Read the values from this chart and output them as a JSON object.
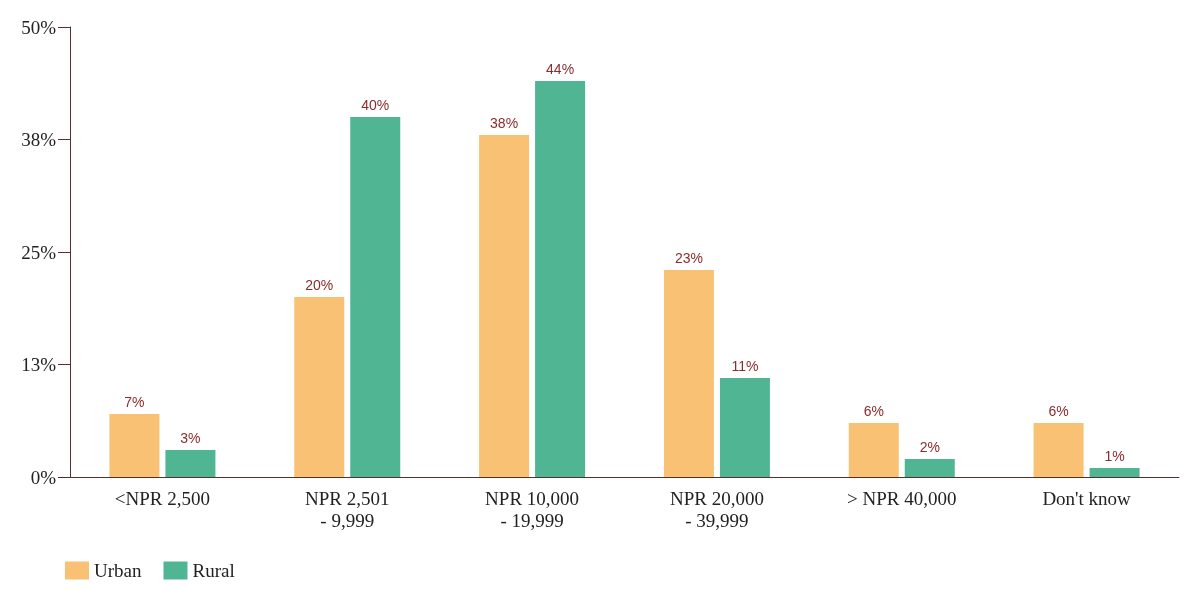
{
  "chart_data": {
    "type": "bar",
    "categories": [
      "<NPR 2,500",
      "NPR 2,501 - 9,999",
      "NPR 10,000 - 19,999",
      "NPR 20,000 - 39,999",
      "> NPR 40,000",
      "Don't know"
    ],
    "series": [
      {
        "name": "Urban",
        "color": "#f9c174",
        "values": [
          7,
          20,
          38,
          23,
          6,
          6
        ],
        "value_labels": [
          "7%",
          "20%",
          "38%",
          "23%",
          "6%",
          "6%"
        ]
      },
      {
        "name": "Rural",
        "color": "#4fb592",
        "values": [
          3,
          40,
          44,
          11,
          2,
          1
        ],
        "value_labels": [
          "3%",
          "40%",
          "44%",
          "11%",
          "2%",
          "1%"
        ]
      }
    ],
    "ylim": [
      0,
      50
    ],
    "yticks": [
      {
        "value": 0,
        "label": "0%"
      },
      {
        "value": 12.5,
        "label": "13%"
      },
      {
        "value": 25,
        "label": "25%"
      },
      {
        "value": 37.5,
        "label": "38%"
      },
      {
        "value": 50,
        "label": "50%"
      }
    ],
    "grid": false,
    "legend": "bottom left"
  }
}
